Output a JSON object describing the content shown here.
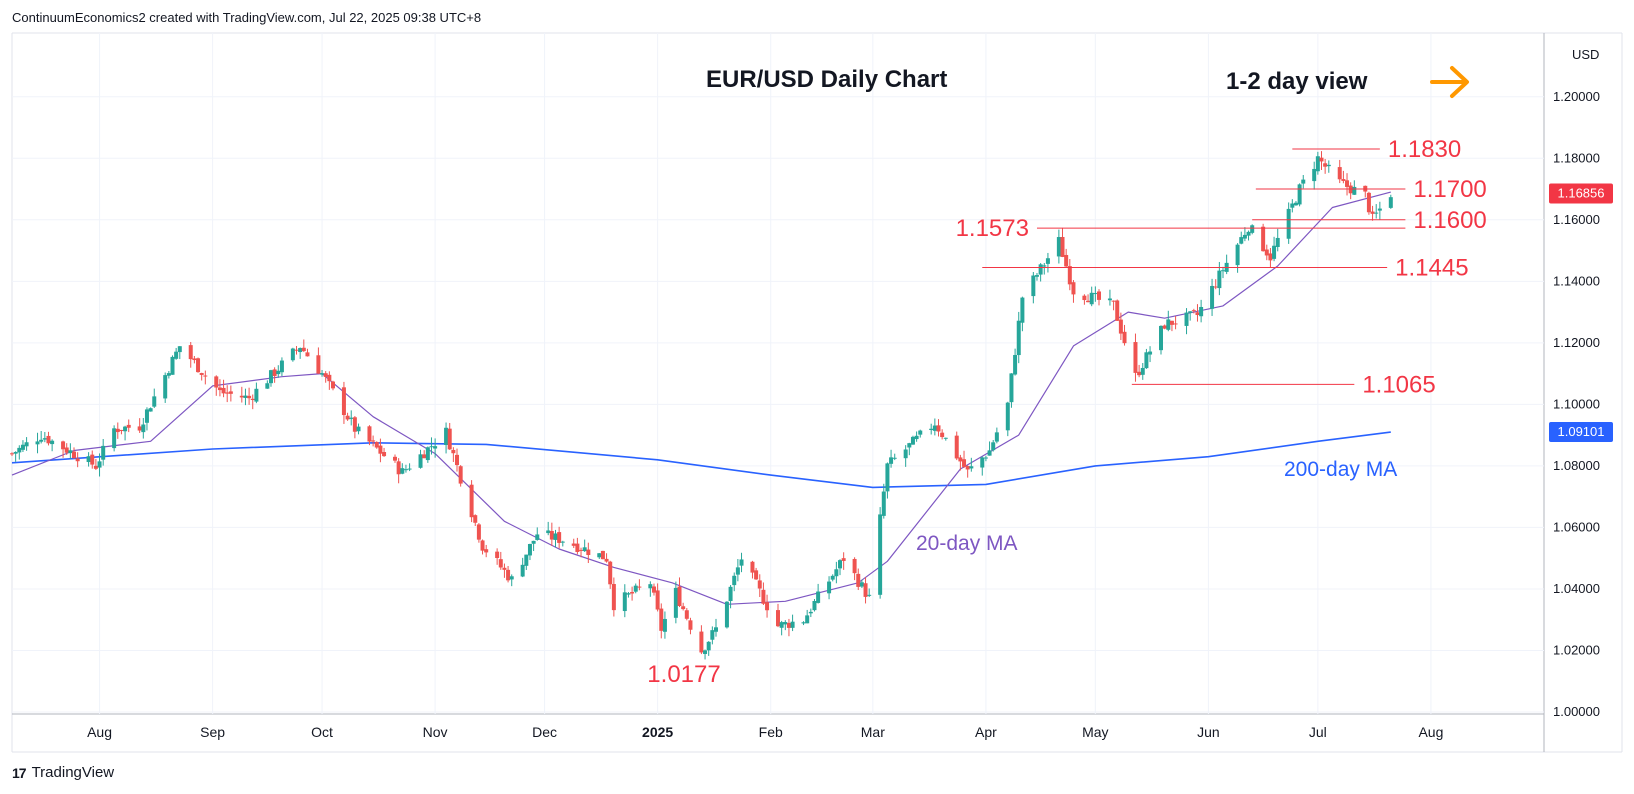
{
  "header": {
    "credit": "ContinuumEconomics2 created with TradingView.com, Jul 22, 2025 09:38 UTC+8"
  },
  "footer": {
    "brand": "TradingView",
    "logo_glyph": "17"
  },
  "colors": {
    "up": "#26a69a",
    "down": "#ef5350",
    "red_text": "#f23645",
    "ma20": "#7e57c2",
    "ma200": "#2962ff",
    "ma200_text": "#2962ff",
    "arrow": "#ff9800",
    "grid": "#f0f3fa",
    "last_price_bg": "#f23645",
    "ma200_bg": "#2962ff"
  },
  "chart_data": {
    "type": "candlestick",
    "title": "EUR/USD Daily Chart",
    "subtitle": "1-2 day view",
    "currency": "USD",
    "y_axis": {
      "ylim": [
        1.0,
        1.21
      ],
      "ticks": [
        "1.00000",
        "1.02000",
        "1.04000",
        "1.06000",
        "1.08000",
        "1.10000",
        "1.12000",
        "1.14000",
        "1.16000",
        "1.18000",
        "1.20000"
      ]
    },
    "x_axis": {
      "labels": [
        {
          "date": "2024-08-01",
          "text": "Aug"
        },
        {
          "date": "2024-09-01",
          "text": "Sep"
        },
        {
          "date": "2024-10-01",
          "text": "Oct"
        },
        {
          "date": "2024-11-01",
          "text": "Nov"
        },
        {
          "date": "2024-12-01",
          "text": "Dec"
        },
        {
          "date": "2025-01-01",
          "text": "2025"
        },
        {
          "date": "2025-02-01",
          "text": "Feb"
        },
        {
          "date": "2025-03-01",
          "text": "Mar"
        },
        {
          "date": "2025-04-01",
          "text": "Apr"
        },
        {
          "date": "2025-05-01",
          "text": "May"
        },
        {
          "date": "2025-06-01",
          "text": "Jun"
        },
        {
          "date": "2025-07-01",
          "text": "Jul"
        },
        {
          "date": "2025-08-01",
          "text": "Aug"
        }
      ],
      "range": [
        "2024-07-08",
        "2025-09-01"
      ]
    },
    "price_path": [
      {
        "date": "2024-07-08",
        "price": 1.084
      },
      {
        "date": "2024-07-16",
        "price": 1.09
      },
      {
        "date": "2024-07-31",
        "price": 1.08
      },
      {
        "date": "2024-08-05",
        "price": 1.092
      },
      {
        "date": "2024-08-12",
        "price": 1.093
      },
      {
        "date": "2024-08-23",
        "price": 1.119
      },
      {
        "date": "2024-09-03",
        "price": 1.104
      },
      {
        "date": "2024-09-11",
        "price": 1.102
      },
      {
        "date": "2024-09-25",
        "price": 1.119
      },
      {
        "date": "2024-10-01",
        "price": 1.11
      },
      {
        "date": "2024-10-10",
        "price": 1.092
      },
      {
        "date": "2024-10-23",
        "price": 1.078
      },
      {
        "date": "2024-11-04",
        "price": 1.091
      },
      {
        "date": "2024-11-14",
        "price": 1.054
      },
      {
        "date": "2024-11-22",
        "price": 1.043
      },
      {
        "date": "2024-11-29",
        "price": 1.058
      },
      {
        "date": "2024-12-06",
        "price": 1.056
      },
      {
        "date": "2024-12-18",
        "price": 1.05
      },
      {
        "date": "2024-12-20",
        "price": 1.035
      },
      {
        "date": "2024-12-30",
        "price": 1.042
      },
      {
        "date": "2025-01-02",
        "price": 1.027
      },
      {
        "date": "2025-01-06",
        "price": 1.039
      },
      {
        "date": "2025-01-13",
        "price": 1.02
      },
      {
        "date": "2025-01-17",
        "price": 1.027
      },
      {
        "date": "2025-01-24",
        "price": 1.05
      },
      {
        "date": "2025-02-03",
        "price": 1.028
      },
      {
        "date": "2025-02-10",
        "price": 1.03
      },
      {
        "date": "2025-02-21",
        "price": 1.05
      },
      {
        "date": "2025-02-28",
        "price": 1.037
      },
      {
        "date": "2025-03-05",
        "price": 1.08
      },
      {
        "date": "2025-03-18",
        "price": 1.094
      },
      {
        "date": "2025-03-27",
        "price": 1.078
      },
      {
        "date": "2025-04-02",
        "price": 1.085
      },
      {
        "date": "2025-04-07",
        "price": 1.1
      },
      {
        "date": "2025-04-11",
        "price": 1.135
      },
      {
        "date": "2025-04-21",
        "price": 1.153
      },
      {
        "date": "2025-04-25",
        "price": 1.137
      },
      {
        "date": "2025-05-06",
        "price": 1.132
      },
      {
        "date": "2025-05-12",
        "price": 1.109
      },
      {
        "date": "2025-05-20",
        "price": 1.126
      },
      {
        "date": "2025-05-29",
        "price": 1.129
      },
      {
        "date": "2025-06-05",
        "price": 1.144
      },
      {
        "date": "2025-06-12",
        "price": 1.158
      },
      {
        "date": "2025-06-18",
        "price": 1.148
      },
      {
        "date": "2025-06-26",
        "price": 1.17
      },
      {
        "date": "2025-07-01",
        "price": 1.18
      },
      {
        "date": "2025-07-07",
        "price": 1.172
      },
      {
        "date": "2025-07-14",
        "price": 1.168
      },
      {
        "date": "2025-07-16",
        "price": 1.16
      },
      {
        "date": "2025-07-21",
        "price": 1.1686
      }
    ],
    "ma20_path": [
      {
        "date": "2024-07-08",
        "price": 1.077
      },
      {
        "date": "2024-07-25",
        "price": 1.085
      },
      {
        "date": "2024-08-15",
        "price": 1.088
      },
      {
        "date": "2024-09-01",
        "price": 1.106
      },
      {
        "date": "2024-09-20",
        "price": 1.109
      },
      {
        "date": "2024-10-01",
        "price": 1.11
      },
      {
        "date": "2024-10-15",
        "price": 1.096
      },
      {
        "date": "2024-11-01",
        "price": 1.084
      },
      {
        "date": "2024-11-20",
        "price": 1.062
      },
      {
        "date": "2024-12-05",
        "price": 1.053
      },
      {
        "date": "2024-12-20",
        "price": 1.047
      },
      {
        "date": "2025-01-05",
        "price": 1.042
      },
      {
        "date": "2025-01-20",
        "price": 1.035
      },
      {
        "date": "2025-02-05",
        "price": 1.036
      },
      {
        "date": "2025-02-25",
        "price": 1.042
      },
      {
        "date": "2025-03-05",
        "price": 1.049
      },
      {
        "date": "2025-03-25",
        "price": 1.079
      },
      {
        "date": "2025-04-10",
        "price": 1.09
      },
      {
        "date": "2025-04-25",
        "price": 1.119
      },
      {
        "date": "2025-05-10",
        "price": 1.13
      },
      {
        "date": "2025-05-20",
        "price": 1.128
      },
      {
        "date": "2025-06-05",
        "price": 1.132
      },
      {
        "date": "2025-06-20",
        "price": 1.145
      },
      {
        "date": "2025-07-05",
        "price": 1.164
      },
      {
        "date": "2025-07-21",
        "price": 1.169
      }
    ],
    "ma200_path": [
      {
        "date": "2024-07-08",
        "price": 1.081
      },
      {
        "date": "2024-09-01",
        "price": 1.0855
      },
      {
        "date": "2024-10-15",
        "price": 1.0875
      },
      {
        "date": "2024-11-15",
        "price": 1.087
      },
      {
        "date": "2025-01-01",
        "price": 1.082
      },
      {
        "date": "2025-02-01",
        "price": 1.077
      },
      {
        "date": "2025-03-01",
        "price": 1.073
      },
      {
        "date": "2025-04-01",
        "price": 1.074
      },
      {
        "date": "2025-05-01",
        "price": 1.08
      },
      {
        "date": "2025-06-01",
        "price": 1.083
      },
      {
        "date": "2025-07-01",
        "price": 1.088
      },
      {
        "date": "2025-07-21",
        "price": 1.091
      }
    ],
    "levels": [
      {
        "price": 1.183,
        "label": "1.1830",
        "from": "2025-06-24",
        "to": "2025-07-18",
        "label_side": "right"
      },
      {
        "price": 1.17,
        "label": "1.1700",
        "from": "2025-06-14",
        "to": "2025-07-25",
        "label_side": "right"
      },
      {
        "price": 1.16,
        "label": "1.1600",
        "from": "2025-06-13",
        "to": "2025-07-25",
        "label_side": "right"
      },
      {
        "price": 1.1573,
        "label": "1.1573",
        "from": "2025-04-15",
        "to": "2025-07-25",
        "label_side": "left"
      },
      {
        "price": 1.1445,
        "label": "1.1445",
        "from": "2025-03-31",
        "to": "2025-07-20",
        "label_side": "right"
      },
      {
        "price": 1.1065,
        "label": "1.1065",
        "from": "2025-05-11",
        "to": "2025-07-11",
        "label_side": "right"
      }
    ],
    "low_label": {
      "date": "2025-01-13",
      "price": 1.0177,
      "label": "1.0177"
    },
    "ma_labels": {
      "ma20": "20-day MA",
      "ma200": "200-day MA"
    },
    "last_price": {
      "value": 1.16856,
      "label": "1.16856"
    },
    "ma200_value": {
      "value": 1.09101,
      "label": "1.09101"
    }
  }
}
